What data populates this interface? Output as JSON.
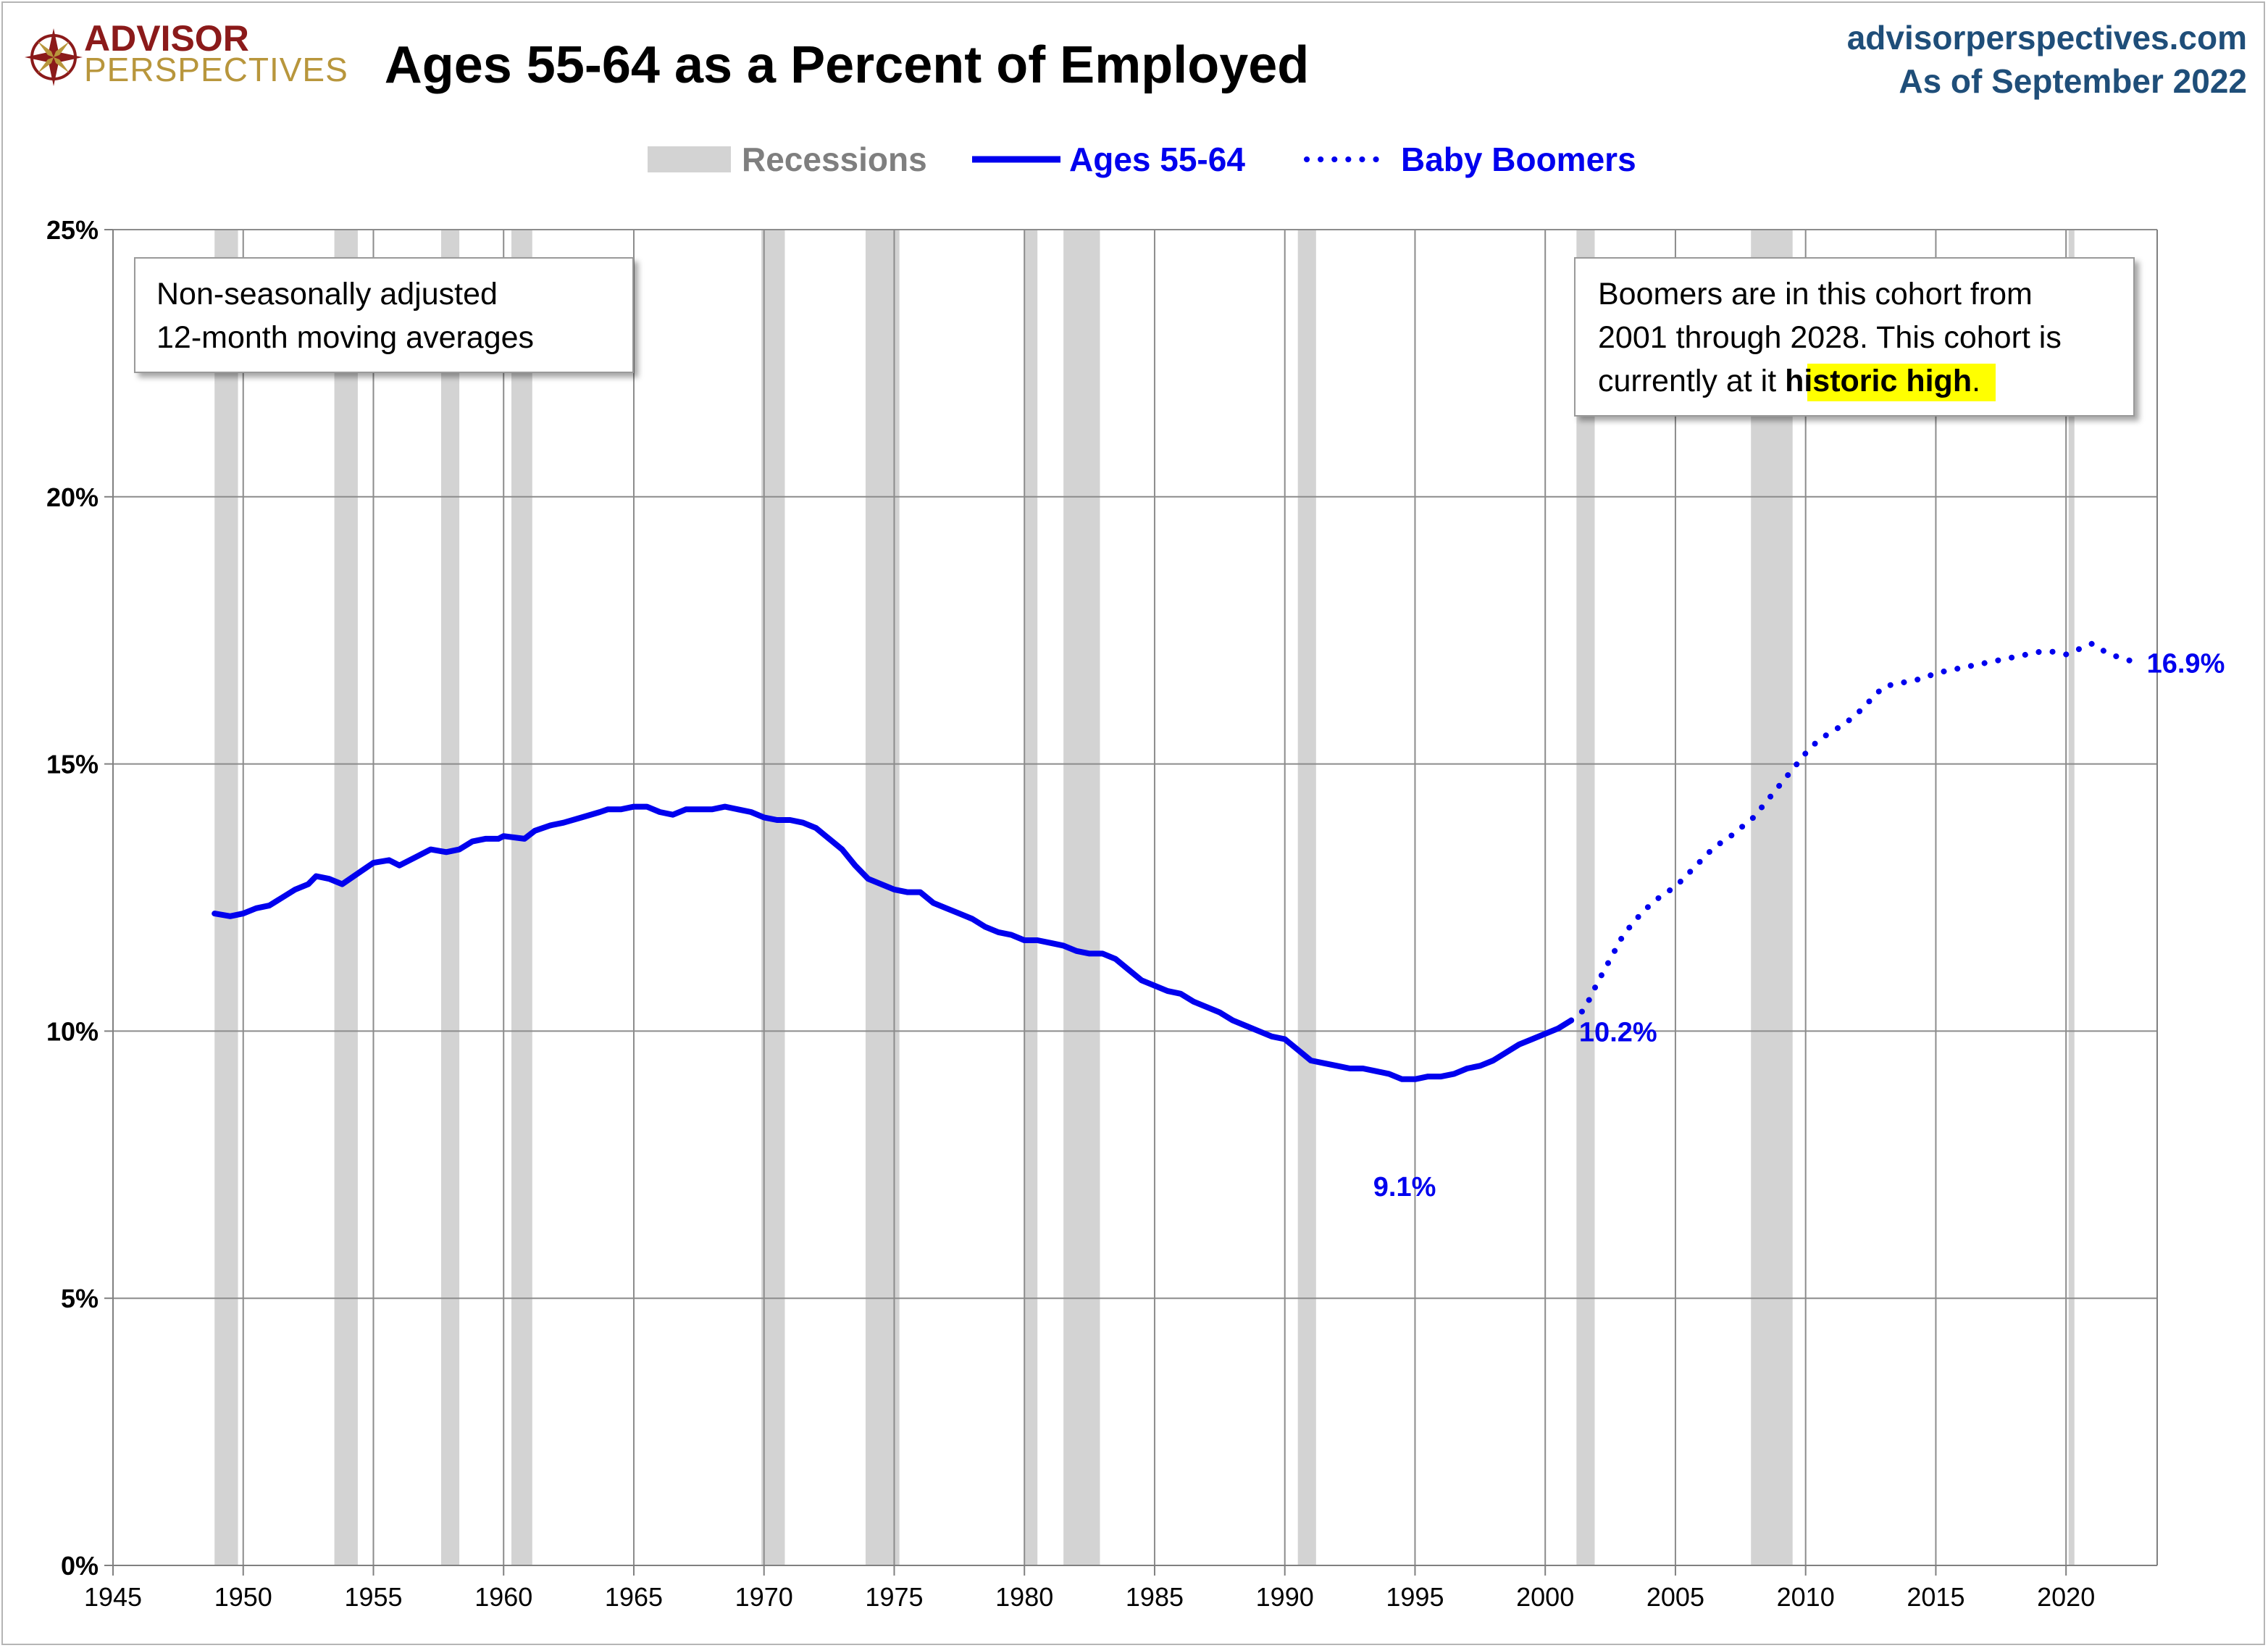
{
  "logo": {
    "line1": "ADVISOR",
    "line2": "PERSPECTIVES"
  },
  "header": {
    "site": "advisorperspectives.com",
    "as_of": "As of September 2022"
  },
  "colors": {
    "line": "#0000ee",
    "recession": "#d3d3d3",
    "grid": "#8c8c8c",
    "brand_red": "#8b1a1a",
    "brand_gold": "#b8963c",
    "site_blue": "#1f4e79",
    "highlight": "#ffff00"
  },
  "chart_data": {
    "type": "line",
    "title": "Ages 55-64 as a Percent of Employed",
    "xlabel": "",
    "ylabel": "",
    "xlim": [
      1945,
      2023.5
    ],
    "ylim": [
      0,
      25
    ],
    "x_ticks": [
      1945,
      1950,
      1955,
      1960,
      1965,
      1970,
      1975,
      1980,
      1985,
      1990,
      1995,
      2000,
      2005,
      2010,
      2015,
      2020
    ],
    "y_ticks": [
      0,
      5,
      10,
      15,
      20,
      25
    ],
    "y_tick_labels": [
      "0%",
      "5%",
      "10%",
      "15%",
      "20%",
      "25%"
    ],
    "legend": {
      "recessions": "Recessions",
      "ages": "Ages 55-64",
      "boomers": "Baby Boomers"
    },
    "recessions": [
      [
        1948.9,
        1949.8
      ],
      [
        1953.5,
        1954.4
      ],
      [
        1957.6,
        1958.3
      ],
      [
        1960.3,
        1961.1
      ],
      [
        1969.9,
        1970.8
      ],
      [
        1973.9,
        1975.2
      ],
      [
        1980.0,
        1980.5
      ],
      [
        1981.5,
        1982.9
      ],
      [
        1990.5,
        1991.2
      ],
      [
        2001.2,
        2001.9
      ],
      [
        2007.9,
        2009.5
      ],
      [
        2020.1,
        2020.3
      ]
    ],
    "series": [
      {
        "name": "Ages 55-64",
        "style": "solid",
        "points": [
          [
            1948.9,
            12.2
          ],
          [
            1949.5,
            12.15
          ],
          [
            1950.0,
            12.2
          ],
          [
            1950.5,
            12.3
          ],
          [
            1951.0,
            12.35
          ],
          [
            1951.5,
            12.5
          ],
          [
            1952.0,
            12.65
          ],
          [
            1952.5,
            12.75
          ],
          [
            1952.8,
            12.9
          ],
          [
            1953.3,
            12.85
          ],
          [
            1953.8,
            12.75
          ],
          [
            1954.4,
            12.95
          ],
          [
            1955.0,
            13.15
          ],
          [
            1955.6,
            13.2
          ],
          [
            1956.0,
            13.1
          ],
          [
            1956.6,
            13.25
          ],
          [
            1957.2,
            13.4
          ],
          [
            1957.8,
            13.35
          ],
          [
            1958.3,
            13.4
          ],
          [
            1958.8,
            13.55
          ],
          [
            1959.3,
            13.6
          ],
          [
            1959.8,
            13.6
          ],
          [
            1960.0,
            13.65
          ],
          [
            1960.8,
            13.6
          ],
          [
            1961.2,
            13.75
          ],
          [
            1961.8,
            13.85
          ],
          [
            1962.3,
            13.9
          ],
          [
            1963.0,
            14.0
          ],
          [
            1963.7,
            14.1
          ],
          [
            1964.0,
            14.15
          ],
          [
            1964.5,
            14.15
          ],
          [
            1965.0,
            14.2
          ],
          [
            1965.5,
            14.2
          ],
          [
            1966.0,
            14.1
          ],
          [
            1966.5,
            14.05
          ],
          [
            1967.0,
            14.15
          ],
          [
            1967.5,
            14.15
          ],
          [
            1968.0,
            14.15
          ],
          [
            1968.5,
            14.2
          ],
          [
            1969.0,
            14.15
          ],
          [
            1969.5,
            14.1
          ],
          [
            1970.0,
            14.0
          ],
          [
            1970.5,
            13.95
          ],
          [
            1971.0,
            13.95
          ],
          [
            1971.5,
            13.9
          ],
          [
            1972.0,
            13.8
          ],
          [
            1972.5,
            13.6
          ],
          [
            1973.0,
            13.4
          ],
          [
            1973.5,
            13.1
          ],
          [
            1974.0,
            12.85
          ],
          [
            1974.5,
            12.75
          ],
          [
            1975.0,
            12.65
          ],
          [
            1975.5,
            12.6
          ],
          [
            1976.0,
            12.6
          ],
          [
            1976.5,
            12.4
          ],
          [
            1977.0,
            12.3
          ],
          [
            1977.5,
            12.2
          ],
          [
            1978.0,
            12.1
          ],
          [
            1978.5,
            11.95
          ],
          [
            1979.0,
            11.85
          ],
          [
            1979.5,
            11.8
          ],
          [
            1980.0,
            11.7
          ],
          [
            1980.5,
            11.7
          ],
          [
            1981.0,
            11.65
          ],
          [
            1981.5,
            11.6
          ],
          [
            1982.0,
            11.5
          ],
          [
            1982.5,
            11.45
          ],
          [
            1983.0,
            11.45
          ],
          [
            1983.5,
            11.35
          ],
          [
            1984.0,
            11.15
          ],
          [
            1984.5,
            10.95
          ],
          [
            1985.0,
            10.85
          ],
          [
            1985.5,
            10.75
          ],
          [
            1986.0,
            10.7
          ],
          [
            1986.5,
            10.55
          ],
          [
            1987.0,
            10.45
          ],
          [
            1987.5,
            10.35
          ],
          [
            1988.0,
            10.2
          ],
          [
            1988.5,
            10.1
          ],
          [
            1989.0,
            10.0
          ],
          [
            1989.5,
            9.9
          ],
          [
            1990.0,
            9.85
          ],
          [
            1990.5,
            9.65
          ],
          [
            1991.0,
            9.45
          ],
          [
            1991.5,
            9.4
          ],
          [
            1992.0,
            9.35
          ],
          [
            1992.5,
            9.3
          ],
          [
            1993.0,
            9.3
          ],
          [
            1993.5,
            9.25
          ],
          [
            1994.0,
            9.2
          ],
          [
            1994.5,
            9.1
          ],
          [
            1995.0,
            9.1
          ],
          [
            1995.5,
            9.15
          ],
          [
            1996.0,
            9.15
          ],
          [
            1996.5,
            9.2
          ],
          [
            1997.0,
            9.3
          ],
          [
            1997.5,
            9.35
          ],
          [
            1998.0,
            9.45
          ],
          [
            1998.5,
            9.6
          ],
          [
            1999.0,
            9.75
          ],
          [
            1999.5,
            9.85
          ],
          [
            2000.0,
            9.95
          ],
          [
            2000.5,
            10.05
          ],
          [
            2001.0,
            10.2
          ]
        ]
      },
      {
        "name": "Baby Boomers",
        "style": "dotted",
        "points": [
          [
            2001.0,
            10.2
          ],
          [
            2001.5,
            10.4
          ],
          [
            2002.0,
            10.9
          ],
          [
            2002.5,
            11.35
          ],
          [
            2003.0,
            11.8
          ],
          [
            2003.5,
            12.1
          ],
          [
            2004.0,
            12.35
          ],
          [
            2004.5,
            12.55
          ],
          [
            2005.0,
            12.7
          ],
          [
            2005.5,
            12.95
          ],
          [
            2006.0,
            13.2
          ],
          [
            2006.5,
            13.45
          ],
          [
            2007.0,
            13.6
          ],
          [
            2007.5,
            13.8
          ],
          [
            2008.0,
            14.0
          ],
          [
            2008.5,
            14.3
          ],
          [
            2009.0,
            14.6
          ],
          [
            2009.5,
            14.9
          ],
          [
            2010.0,
            15.2
          ],
          [
            2010.5,
            15.45
          ],
          [
            2011.0,
            15.6
          ],
          [
            2011.5,
            15.75
          ],
          [
            2012.0,
            15.95
          ],
          [
            2012.5,
            16.2
          ],
          [
            2013.0,
            16.45
          ],
          [
            2013.5,
            16.5
          ],
          [
            2014.0,
            16.55
          ],
          [
            2014.5,
            16.6
          ],
          [
            2015.0,
            16.7
          ],
          [
            2015.5,
            16.75
          ],
          [
            2016.0,
            16.8
          ],
          [
            2016.5,
            16.85
          ],
          [
            2017.0,
            16.9
          ],
          [
            2017.5,
            16.95
          ],
          [
            2018.0,
            17.0
          ],
          [
            2018.5,
            17.05
          ],
          [
            2019.0,
            17.1
          ],
          [
            2019.5,
            17.1
          ],
          [
            2020.0,
            17.05
          ],
          [
            2020.5,
            17.15
          ],
          [
            2021.0,
            17.25
          ],
          [
            2021.5,
            17.1
          ],
          [
            2022.0,
            17.0
          ],
          [
            2022.7,
            16.9
          ]
        ]
      }
    ],
    "annotations": [
      {
        "name": "min-label",
        "text": "9.1%",
        "x": 1994.6,
        "y": 8.95
      },
      {
        "name": "2001-label",
        "text": "10.2%",
        "x": 2001.3,
        "y": 10.0
      },
      {
        "name": "end-label",
        "text": "16.9%",
        "x": 2023.1,
        "y": 16.9
      }
    ],
    "notes": {
      "left_line1": "Non-seasonally adjusted",
      "left_line2": "12-month moving averages",
      "right_line1": "Boomers are in this cohort from",
      "right_line2": "2001 through 2028. This cohort is",
      "right_line3_pre": "currently at it ",
      "right_line3_highlight": "historic high",
      "right_line3_post": "."
    }
  }
}
